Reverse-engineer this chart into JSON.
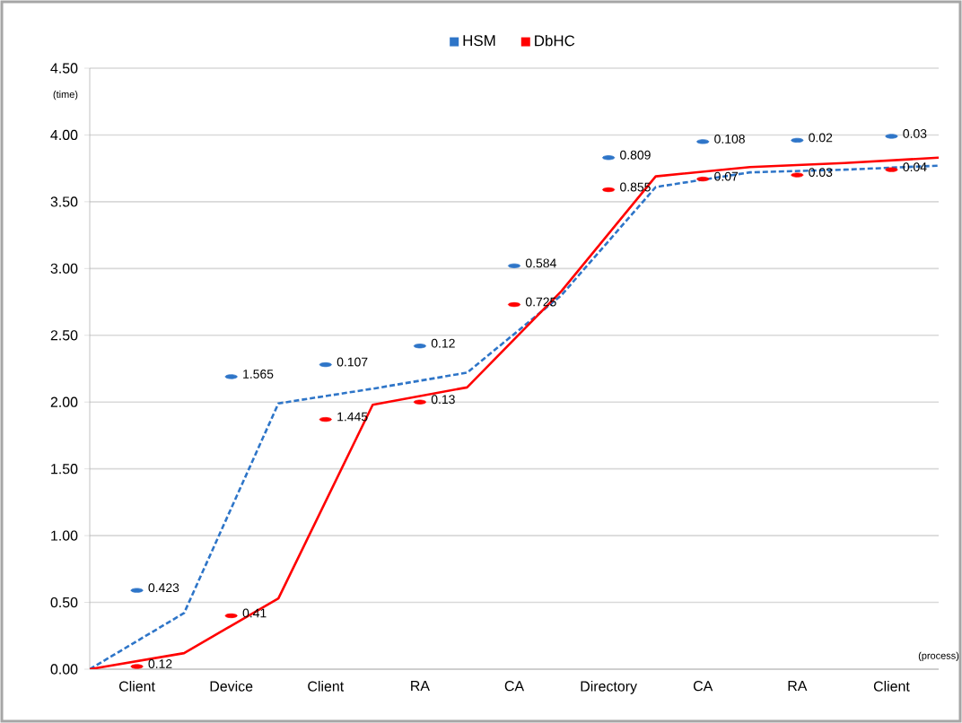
{
  "chart_data": {
    "type": "line",
    "xlabel": "(process)",
    "ylabel": "(time)",
    "categories": [
      null,
      "Client",
      null,
      "Device",
      null,
      "Client",
      null,
      "RA",
      null,
      "CA",
      null,
      "Directory",
      null,
      "CA",
      null,
      "RA",
      null,
      "Client",
      null
    ],
    "ylim": [
      0,
      4.5
    ],
    "yticks": [
      {
        "value": 0,
        "label": "0.00"
      },
      {
        "value": 0.5,
        "label": "0.50"
      },
      {
        "value": 1,
        "label": "1.00"
      },
      {
        "value": 1.5,
        "label": "1.50"
      },
      {
        "value": 2,
        "label": "2.00"
      },
      {
        "value": 2.5,
        "label": "2.50"
      },
      {
        "value": 3,
        "label": "3.00"
      },
      {
        "value": 3.5,
        "label": "3.50"
      },
      {
        "value": 4,
        "label": "4.00"
      },
      {
        "value": 4.5,
        "label": "4.50"
      }
    ],
    "grid": "y",
    "legend": "top",
    "marker": "none",
    "series": [
      {
        "name": "HSM",
        "color": "#2e75c8",
        "line_style": "dashed",
        "values": [
          0,
          null,
          0.42,
          null,
          1.99,
          null,
          2.1,
          null,
          2.22,
          null,
          2.8,
          null,
          3.61,
          null,
          3.72,
          null,
          3.74,
          null,
          3.77
        ]
      },
      {
        "name": "DbHC",
        "color": "#ff0000",
        "line_style": "solid",
        "values": [
          0,
          null,
          0.12,
          null,
          0.53,
          null,
          1.98,
          null,
          2.11,
          null,
          2.83,
          null,
          3.69,
          null,
          3.76,
          null,
          3.79,
          null,
          3.83
        ]
      },
      {
        "type": "scatter",
        "color": "#2e75c8",
        "values": [
          null,
          0.59,
          null,
          2.19,
          null,
          2.28,
          null,
          2.42,
          null,
          3.02,
          null,
          3.83,
          null,
          3.95,
          null,
          3.96,
          null,
          3.99,
          null
        ]
      },
      {
        "type": "scatter",
        "color": "#ff0000",
        "values": [
          null,
          0.02,
          null,
          0.4,
          null,
          1.87,
          null,
          2.0,
          null,
          2.73,
          null,
          3.59,
          null,
          3.67,
          null,
          3.7,
          null,
          3.74,
          null
        ]
      }
    ],
    "annotations": [
      "0.423",
      "1.565",
      "0.107",
      "0.12",
      "0.584",
      "0.809",
      "0.108",
      "0.02",
      "0.03",
      "0.12",
      "0.41",
      "1.445",
      "0.13",
      "0.725",
      "0.855",
      "0.07",
      "0.03",
      "0.04"
    ]
  }
}
